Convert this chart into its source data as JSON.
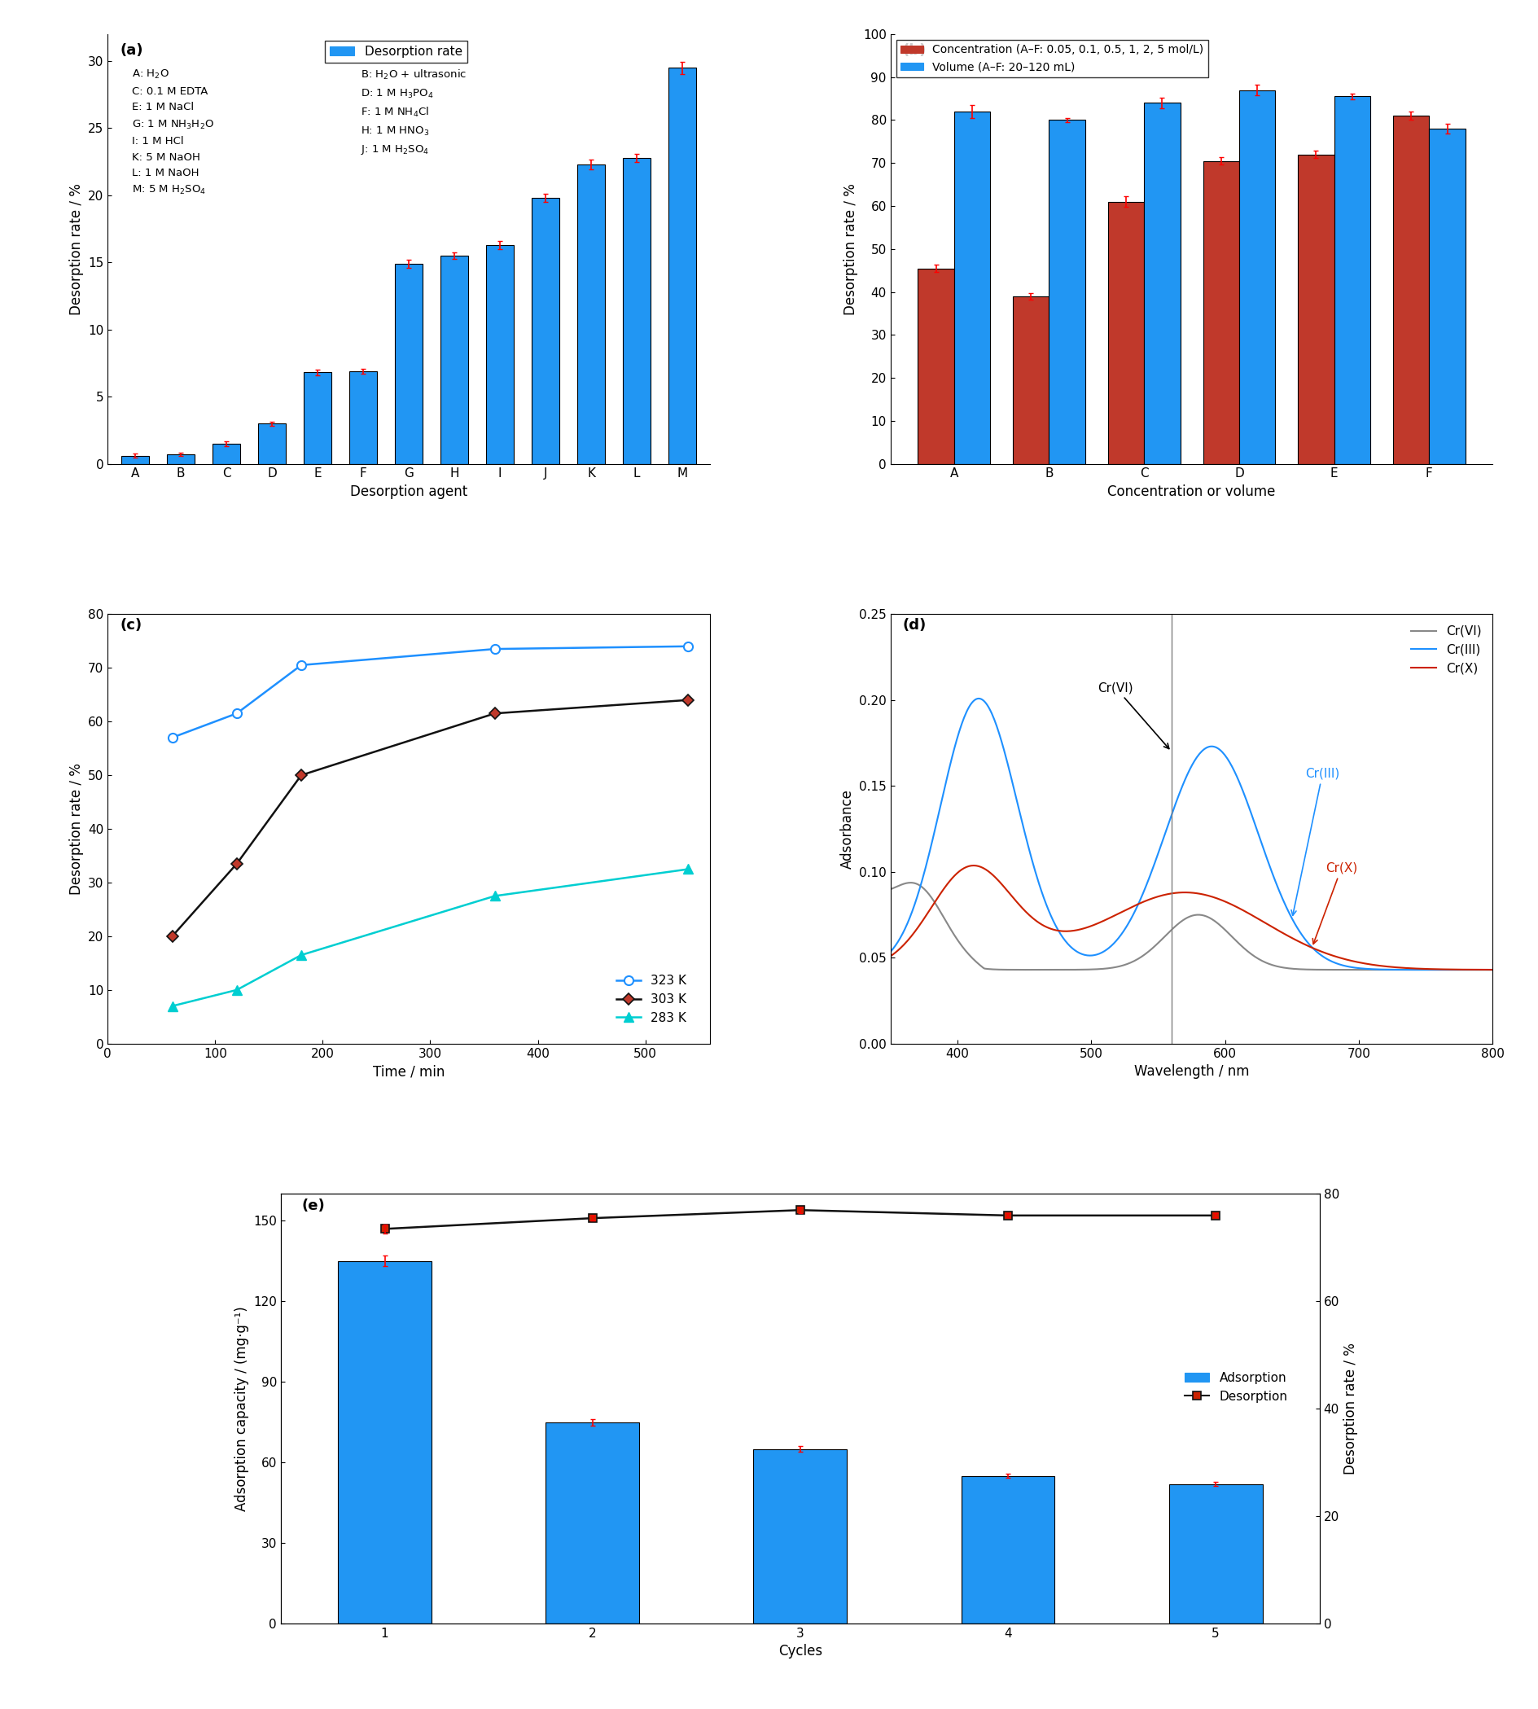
{
  "panel_a": {
    "categories": [
      "A",
      "B",
      "C",
      "D",
      "E",
      "F",
      "G",
      "H",
      "I",
      "J",
      "K",
      "L",
      "M"
    ],
    "values": [
      0.6,
      0.7,
      1.5,
      3.0,
      6.8,
      6.9,
      14.9,
      15.5,
      16.3,
      19.8,
      22.3,
      22.8,
      29.5
    ],
    "errors": [
      0.15,
      0.1,
      0.2,
      0.15,
      0.2,
      0.2,
      0.3,
      0.25,
      0.3,
      0.3,
      0.35,
      0.3,
      0.45
    ],
    "bar_color": "#2196F3",
    "error_color": "red",
    "ylabel": "Desorption rate / %",
    "xlabel": "Desorption agent",
    "ylim": [
      0,
      32
    ],
    "yticks": [
      0,
      5,
      10,
      15,
      20,
      25,
      30
    ],
    "legend_label": "Desorption rate",
    "label": "(a)"
  },
  "panel_b": {
    "categories": [
      "A",
      "B",
      "C",
      "D",
      "E",
      "F"
    ],
    "conc_values": [
      45.5,
      39.0,
      61.0,
      70.5,
      72.0,
      81.0
    ],
    "vol_values": [
      82.0,
      80.0,
      84.0,
      87.0,
      85.5,
      78.0
    ],
    "conc_errors": [
      0.9,
      0.8,
      1.2,
      0.8,
      0.8,
      0.9
    ],
    "vol_errors": [
      1.5,
      0.5,
      1.2,
      1.2,
      0.7,
      1.2
    ],
    "conc_color": "#C0392B",
    "vol_color": "#2196F3",
    "error_color": "red",
    "ylabel": "Desorption rate / %",
    "xlabel": "Concentration or volume",
    "ylim": [
      0,
      100
    ],
    "yticks": [
      0,
      10,
      20,
      30,
      40,
      50,
      60,
      70,
      80,
      90,
      100
    ],
    "legend_conc": "Concentration (A–F: 0.05, 0.1, 0.5, 1, 2, 5 mol/L)",
    "legend_vol": "Volume (A–F: 20–120 mL)",
    "label": "(b)"
  },
  "panel_c": {
    "time_283": [
      60,
      120,
      180,
      360,
      540
    ],
    "time_303": [
      60,
      120,
      180,
      360,
      540
    ],
    "time_323": [
      60,
      120,
      180,
      360,
      540
    ],
    "val_283": [
      7.0,
      10.0,
      16.5,
      27.5,
      32.5
    ],
    "val_303": [
      20.0,
      33.5,
      50.0,
      61.5,
      64.0
    ],
    "val_323": [
      57.0,
      61.5,
      70.5,
      73.5,
      74.0
    ],
    "color_283": "#00CED1",
    "color_303": "#111111",
    "color_323": "#1E90FF",
    "marker_283": "^",
    "marker_303": "D",
    "marker_323": "o",
    "marker_303_face": "#C0392B",
    "marker_323_face": "white",
    "ylabel": "Desorption rate / %",
    "xlabel": "Time / min",
    "ylim": [
      0,
      80
    ],
    "yticks": [
      0,
      10,
      20,
      30,
      40,
      50,
      60,
      70,
      80
    ],
    "label_283": "283 K",
    "label_303": "303 K",
    "label_323": "323 K",
    "label": "(c)"
  },
  "panel_d": {
    "color_VI": "#888888",
    "color_III": "#1E90FF",
    "color_X": "#CC2200",
    "ylabel": "Adsorbance",
    "xlabel": "Wavelength / nm",
    "ylim": [
      0,
      0.25
    ],
    "yticks": [
      0.0,
      0.05,
      0.1,
      0.15,
      0.2,
      0.25
    ],
    "xlim": [
      350,
      800
    ],
    "xticks": [
      400,
      500,
      600,
      700,
      800
    ],
    "label": "(d)",
    "vline_x": 560
  },
  "panel_e": {
    "cycles": [
      1,
      2,
      3,
      4,
      5
    ],
    "adsorption": [
      135.0,
      75.0,
      65.0,
      55.0,
      52.0
    ],
    "adsorption_errors": [
      2.0,
      1.2,
      1.0,
      0.8,
      0.8
    ],
    "desorption": [
      73.5,
      75.5,
      77.0,
      76.0,
      76.0
    ],
    "desorption_errors": [
      0.8,
      0.5,
      0.5,
      0.4,
      0.4
    ],
    "bar_color": "#2196F3",
    "line_color": "#111111",
    "marker": "s",
    "marker_face": "#CC2200",
    "error_color": "red",
    "ylabel_left": "Adsorption capacity / (mg·g⁻¹)",
    "ylabel_right": "Desorption rate / %",
    "xlabel": "Cycles",
    "ylim_left": [
      0,
      160
    ],
    "yticks_left": [
      0,
      30,
      60,
      90,
      120,
      150
    ],
    "ylim_right": [
      0,
      80
    ],
    "yticks_right": [
      0,
      20,
      40,
      60,
      80
    ],
    "legend_ads": "Adsorption",
    "legend_des": "Desorption",
    "label": "(e)"
  }
}
